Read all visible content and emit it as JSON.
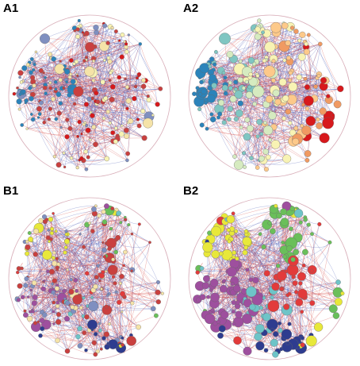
{
  "panels": [
    {
      "id": "a1",
      "label": "A1",
      "seed": 11,
      "colorMode": "mixed",
      "sizeMode": "small",
      "clusters": "A",
      "node_count": 230
    },
    {
      "id": "a2",
      "label": "A2",
      "seed": 11,
      "colorMode": "gradient",
      "sizeMode": "large",
      "clusters": "A",
      "node_count": 230
    },
    {
      "id": "b1",
      "label": "B1",
      "seed": 29,
      "colorMode": "mixed",
      "sizeMode": "small",
      "clusters": "B",
      "node_count": 240
    },
    {
      "id": "b2",
      "label": "B2",
      "seed": 29,
      "colorMode": "community",
      "sizeMode": "large",
      "clusters": "B",
      "node_count": 240
    }
  ],
  "colors": {
    "edge_red": "#d9534f",
    "edge_blue": "#5566bb",
    "node_stroke": "#666666",
    "gradient": [
      "#2b83ba",
      "#7fc6c2",
      "#d6ebc0",
      "#f8f3b4",
      "#fdc98a",
      "#f09a62",
      "#d7191c"
    ],
    "community_b": [
      "#e8e83a",
      "#9e4f9e",
      "#6abf5a",
      "#e23b3b",
      "#6ec4c8",
      "#2e3c8f"
    ]
  }
}
